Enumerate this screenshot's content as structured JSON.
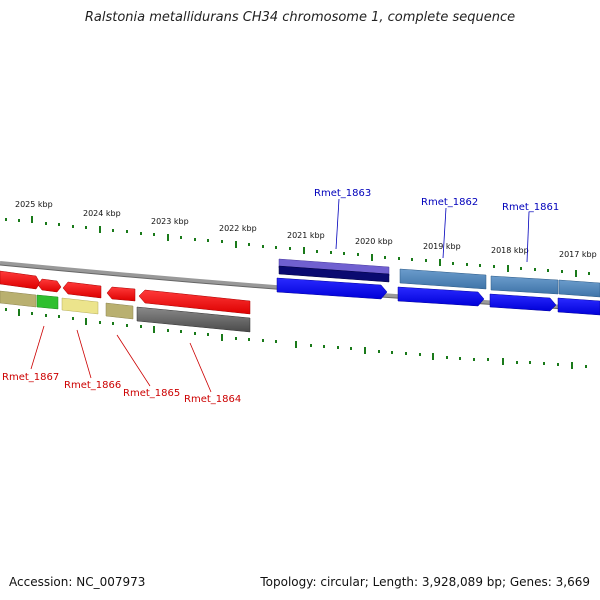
{
  "title": "Ralstonia metallidurans CH34 chromosome 1, complete sequence",
  "footer": {
    "accession": "Accession: NC_007973",
    "summary": "Topology: circular; Length: 3,928,089 bp; Genes: 3,669"
  },
  "ruler_labels": [
    "2025 kbp",
    "2024 kbp",
    "2023 kbp",
    "2022 kbp",
    "2021 kbp",
    "2020 kbp",
    "2019 kbp",
    "2018 kbp",
    "2017 kbp"
  ],
  "genes_top": [
    "Rmet_1863",
    "Rmet_1862",
    "Rmet_1861"
  ],
  "genes_bottom": [
    "Rmet_1867",
    "Rmet_1866",
    "Rmet_1865",
    "Rmet_1864"
  ],
  "colors": {
    "forward_strand": "#ff0000",
    "reverse_strand": "#0000ff",
    "label_red": "#cc0000",
    "label_blue": "#0000bb",
    "tick_green": "#1a7a1a",
    "backbone": "#888888"
  }
}
